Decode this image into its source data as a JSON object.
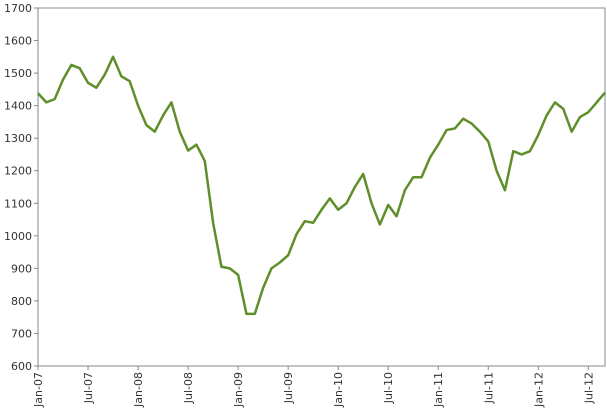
{
  "chart_data": {
    "type": "line",
    "x": [
      "2007-01",
      "2007-02",
      "2007-03",
      "2007-04",
      "2007-05",
      "2007-06",
      "2007-07",
      "2007-08",
      "2007-09",
      "2007-10",
      "2007-11",
      "2007-12",
      "2008-01",
      "2008-02",
      "2008-03",
      "2008-04",
      "2008-05",
      "2008-06",
      "2008-07",
      "2008-08",
      "2008-09",
      "2008-10",
      "2008-11",
      "2008-12",
      "2009-01",
      "2009-02",
      "2009-03",
      "2009-04",
      "2009-05",
      "2009-06",
      "2009-07",
      "2009-08",
      "2009-09",
      "2009-10",
      "2009-11",
      "2009-12",
      "2010-01",
      "2010-02",
      "2010-03",
      "2010-04",
      "2010-05",
      "2010-06",
      "2010-07",
      "2010-08",
      "2010-09",
      "2010-10",
      "2010-11",
      "2010-12",
      "2011-01",
      "2011-02",
      "2011-03",
      "2011-04",
      "2011-05",
      "2011-06",
      "2011-07",
      "2011-08",
      "2011-09",
      "2011-10",
      "2011-11",
      "2011-12",
      "2012-01",
      "2012-02",
      "2012-03",
      "2012-04",
      "2012-05",
      "2012-06",
      "2012-07",
      "2012-08",
      "2012-09"
    ],
    "series": [
      {
        "color": "#5f8f2a",
        "values": [
          1438,
          1410,
          1420,
          1480,
          1525,
          1515,
          1470,
          1455,
          1495,
          1550,
          1490,
          1475,
          1400,
          1340,
          1320,
          1370,
          1410,
          1320,
          1262,
          1280,
          1230,
          1040,
          905,
          900,
          880,
          760,
          760,
          840,
          900,
          918,
          940,
          1005,
          1045,
          1040,
          1080,
          1115,
          1080,
          1100,
          1150,
          1190,
          1100,
          1035,
          1095,
          1060,
          1140,
          1180,
          1180,
          1240,
          1280,
          1325,
          1330,
          1360,
          1345,
          1320,
          1290,
          1200,
          1140,
          1260,
          1250,
          1260,
          1310,
          1370,
          1410,
          1390,
          1320,
          1365,
          1380,
          1410,
          1440
        ]
      }
    ],
    "xlim": [
      "2007-01",
      "2012-09"
    ],
    "xticks": [
      {
        "value": "2007-01",
        "label": "Jan-07"
      },
      {
        "value": "2007-07",
        "label": "Jul-07"
      },
      {
        "value": "2008-01",
        "label": "Jan-08"
      },
      {
        "value": "2008-07",
        "label": "Jul-08"
      },
      {
        "value": "2009-01",
        "label": "Jan-09"
      },
      {
        "value": "2009-07",
        "label": "Jul-09"
      },
      {
        "value": "2010-01",
        "label": "Jan-10"
      },
      {
        "value": "2010-07",
        "label": "Jul-10"
      },
      {
        "value": "2011-01",
        "label": "Jan-11"
      },
      {
        "value": "2011-07",
        "label": "Jul-11"
      },
      {
        "value": "2012-01",
        "label": "Jan-12"
      },
      {
        "value": "2012-07",
        "label": "Jul-12"
      }
    ],
    "ylim": [
      600,
      1700
    ],
    "yticks": [
      600,
      700,
      800,
      900,
      1000,
      1100,
      1200,
      1300,
      1400,
      1500,
      1600,
      1700
    ]
  }
}
